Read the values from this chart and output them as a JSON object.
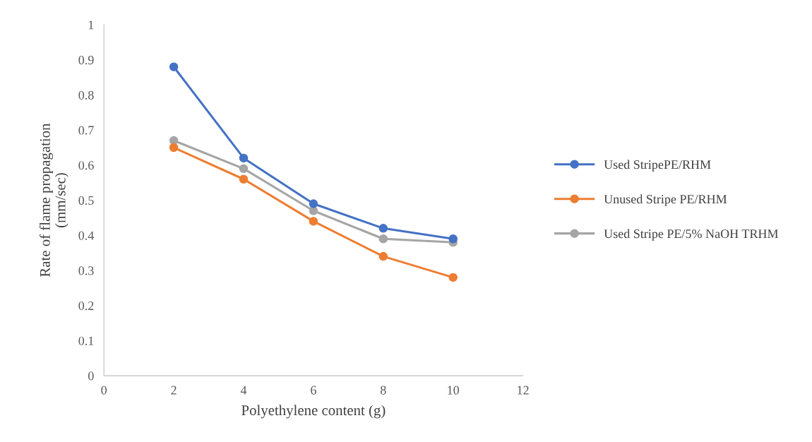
{
  "chart_data": {
    "type": "line",
    "xlabel": "Polyethylene content (g)",
    "ylabel": "Rate of flame propagation\n(mm/sec)",
    "x": [
      2,
      4,
      6,
      8,
      10
    ],
    "series": [
      {
        "name": "Used StripePE/RHM",
        "color": "#4472c4",
        "values": [
          0.88,
          0.62,
          0.49,
          0.42,
          0.39
        ]
      },
      {
        "name": "Unused Stripe PE/RHM",
        "color": "#ed7d31",
        "values": [
          0.65,
          0.56,
          0.44,
          0.34,
          0.28
        ]
      },
      {
        "name": "Used Stripe PE/5% NaOH TRHM",
        "color": "#a5a5a5",
        "values": [
          0.67,
          0.59,
          0.47,
          0.39,
          0.38
        ]
      }
    ],
    "xlim": [
      0,
      12
    ],
    "xticks": [
      0,
      2,
      4,
      6,
      8,
      10,
      12
    ],
    "ylim": [
      0,
      1
    ],
    "yticks": [
      0,
      0.1,
      0.2,
      0.3,
      0.4,
      0.5,
      0.6,
      0.7,
      0.8,
      0.9,
      1
    ],
    "grid": false,
    "legend": "right",
    "marker": "circle",
    "line_style": "solid"
  }
}
